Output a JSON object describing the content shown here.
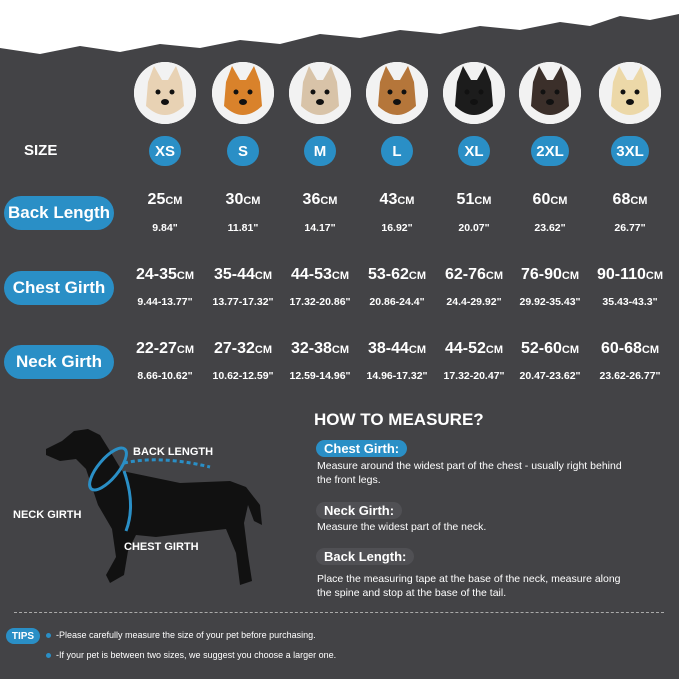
{
  "size_label": "SIZE",
  "sizes": [
    "XS",
    "S",
    "M",
    "L",
    "XL",
    "2XL",
    "3XL"
  ],
  "rows": {
    "back_length": {
      "label": "Back Length",
      "cm": [
        "25",
        "30",
        "36",
        "43",
        "51",
        "60",
        "68"
      ],
      "inch": [
        "9.84\"",
        "11.81\"",
        "14.17\"",
        "16.92\"",
        "20.07\"",
        "23.62\"",
        "26.77\""
      ]
    },
    "chest_girth": {
      "label": "Chest Girth",
      "cm": [
        "24-35",
        "35-44",
        "44-53",
        "53-62",
        "62-76",
        "76-90",
        "90-110"
      ],
      "inch": [
        "9.44-13.77\"",
        "13.77-17.32\"",
        "17.32-20.86\"",
        "20.86-24.4\"",
        "24.4-29.92\"",
        "29.92-35.43\"",
        "35.43-43.3\""
      ]
    },
    "neck_girth": {
      "label": "Neck Girth",
      "cm": [
        "22-27",
        "27-32",
        "32-38",
        "38-44",
        "44-52",
        "52-60",
        "60-68"
      ],
      "inch": [
        "8.66-10.62\"",
        "10.62-12.59\"",
        "12.59-14.96\"",
        "14.96-17.32\"",
        "17.32-20.47\"",
        "20.47-23.62\"",
        "23.62-26.77\""
      ]
    }
  },
  "unit": "CM",
  "diagram": {
    "back_length": "BACK LENGTH",
    "neck_girth": "NECK GIRTH",
    "chest_girth": "CHEST GIRTH"
  },
  "how_to": {
    "title": "HOW TO MEASURE?",
    "chest_label": "Chest Girth:",
    "chest_text": "Measure around the widest part of the chest - usually right behind the front legs.",
    "neck_label": "Neck Girth:",
    "neck_text": "Measure the widest part of the neck.",
    "back_label": "Back Length:",
    "back_text": "Place the measuring tape at the base of the neck, measure along the spine and stop at the base of the tail."
  },
  "tips": {
    "label": "TIPS",
    "items": [
      "-Please carefully measure the size of your pet before purchasing.",
      "-If your pet is between two sizes, we suggest you choose a larger one."
    ]
  },
  "colors": {
    "background": "#434346",
    "accent": "#2a8fc6"
  }
}
